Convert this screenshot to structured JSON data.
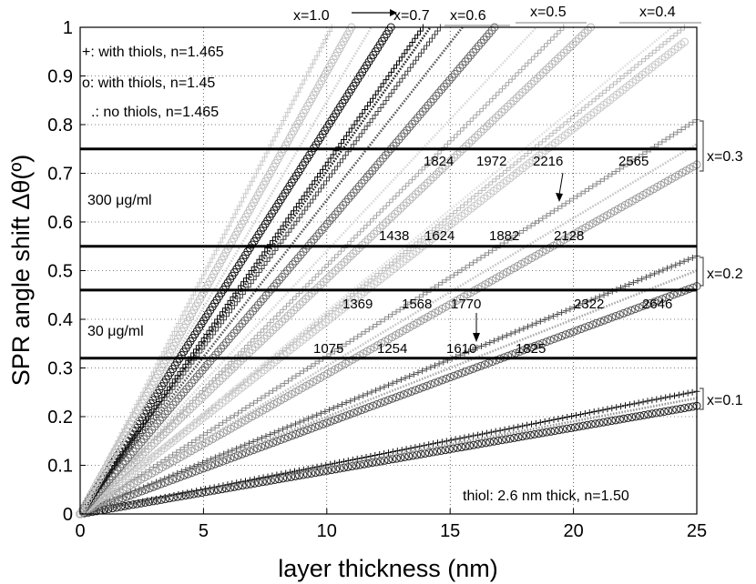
{
  "chart_data": {
    "type": "line",
    "title": "",
    "xlabel": "layer thickness (nm)",
    "ylabel": "SPR angle shift Δθ(º)",
    "xlim": [
      0,
      25
    ],
    "ylim": [
      0,
      1
    ],
    "x_ticks": [
      "0",
      "5",
      "10",
      "15",
      "20",
      "25"
    ],
    "y_ticks": [
      "0",
      "0.1",
      "0.2",
      "0.3",
      "0.4",
      "0.5",
      "0.6",
      "0.7",
      "0.8",
      "0.9",
      "1"
    ],
    "grid": true,
    "legend": {
      "position": "top-left",
      "entries": [
        {
          "marker": "+",
          "label": "+: with thiols, n=1.465"
        },
        {
          "marker": "o",
          "label": "o: with thiols, n=1.45"
        },
        {
          "marker": ".",
          "label": ".: no thiols, n=1.465"
        }
      ]
    },
    "note": "thiol: 2.6 nm thick, n=1.50",
    "horizontal_lines": [
      0.75,
      0.55,
      0.46,
      0.32
    ],
    "concentration_labels": [
      "300 μg/ml",
      "30 μg/ml"
    ],
    "composition_labels": [
      "x=1.0",
      "x=0.7",
      "x=0.6",
      "x=0.5",
      "x=0.4",
      "x=0.3",
      "x=0.2",
      "x=0.1"
    ],
    "intersection_labels": {
      "y_0_75": [
        "1824",
        "1972",
        "2216",
        "2565"
      ],
      "y_0_55": [
        "1438",
        "1624",
        "1882",
        "2128"
      ],
      "y_0_46": [
        "1369",
        "1568",
        "1770",
        "2322",
        "2646"
      ],
      "y_0_32": [
        "1075",
        "1254",
        "1610",
        "1825"
      ]
    },
    "series": [
      {
        "composition": "x=0.1",
        "marker": "+",
        "color": "#111111",
        "x": [
          0,
          25
        ],
        "y": [
          0,
          0.252
        ]
      },
      {
        "composition": "x=0.1",
        "marker": "o",
        "color": "#222222",
        "x": [
          0,
          25
        ],
        "y": [
          0,
          0.222
        ]
      },
      {
        "composition": "x=0.1",
        "marker": ".",
        "color": "#999999",
        "x": [
          0,
          25
        ],
        "y": [
          0,
          0.238
        ]
      },
      {
        "composition": "x=0.2",
        "marker": "+",
        "color": "#444444",
        "x": [
          0,
          25
        ],
        "y": [
          0,
          0.53
        ]
      },
      {
        "composition": "x=0.2",
        "marker": "o",
        "color": "#555555",
        "x": [
          0,
          25
        ],
        "y": [
          0,
          0.468
        ]
      },
      {
        "composition": "x=0.2",
        "marker": ".",
        "color": "#aaaaaa",
        "x": [
          0,
          25
        ],
        "y": [
          0,
          0.5
        ]
      },
      {
        "composition": "x=0.3",
        "marker": "+",
        "color": "#888888",
        "x": [
          0,
          25
        ],
        "y": [
          0,
          0.81
        ]
      },
      {
        "composition": "x=0.3",
        "marker": "o",
        "color": "#9a9a9a",
        "x": [
          0,
          25
        ],
        "y": [
          0,
          0.718
        ]
      },
      {
        "composition": "x=0.3",
        "marker": ".",
        "color": "#c4c4c4",
        "x": [
          0,
          25
        ],
        "y": [
          0,
          0.76
        ]
      },
      {
        "composition": "x=0.4",
        "marker": "+",
        "color": "#bbbbbb",
        "x": [
          0,
          24.5
        ],
        "y": [
          0,
          1.0
        ]
      },
      {
        "composition": "x=0.4",
        "marker": "o",
        "color": "#c8c8c8",
        "x": [
          0,
          24.5
        ],
        "y": [
          0,
          0.97
        ]
      },
      {
        "composition": "x=0.4",
        "marker": ".",
        "color": "#dedede",
        "x": [
          0,
          24
        ],
        "y": [
          0,
          1.0
        ]
      },
      {
        "composition": "x=0.5",
        "marker": "+",
        "color": "#a8a8a8",
        "x": [
          0,
          19.6
        ],
        "y": [
          0,
          1.0
        ]
      },
      {
        "composition": "x=0.5",
        "marker": "o",
        "color": "#b5b5b5",
        "x": [
          0,
          20.7
        ],
        "y": [
          0,
          1.0
        ]
      },
      {
        "composition": "x=0.5",
        "marker": ".",
        "color": "#d8d8d8",
        "x": [
          0,
          18.5
        ],
        "y": [
          0,
          1.0
        ]
      },
      {
        "composition": "x=0.6",
        "marker": "+",
        "color": "#444444",
        "x": [
          0,
          14.6
        ],
        "y": [
          0,
          1.0
        ]
      },
      {
        "composition": "x=0.6",
        "marker": "o",
        "color": "#666666",
        "x": [
          0,
          16.8
        ],
        "y": [
          0,
          1.0
        ]
      },
      {
        "composition": "x=0.6",
        "marker": ".",
        "color": "#555555",
        "x": [
          0,
          15.5
        ],
        "y": [
          0,
          1.0
        ]
      },
      {
        "composition": "x=0.7",
        "marker": "+",
        "color": "#000000",
        "x": [
          0,
          13.9
        ],
        "y": [
          0,
          1.0
        ]
      },
      {
        "composition": "x=0.7",
        "marker": "o",
        "color": "#111111",
        "x": [
          0,
          12.6
        ],
        "y": [
          0,
          1.0
        ]
      },
      {
        "composition": "x=0.7",
        "marker": ".",
        "color": "#222222",
        "x": [
          0,
          14.2
        ],
        "y": [
          0,
          1.0
        ]
      },
      {
        "composition": "x=1.0",
        "marker": "+",
        "color": "#c8c8c8",
        "x": [
          0,
          10.2
        ],
        "y": [
          0,
          1.0
        ]
      },
      {
        "composition": "x=1.0",
        "marker": "o",
        "color": "#bfbfbf",
        "x": [
          0,
          11.0
        ],
        "y": [
          0,
          1.0
        ]
      },
      {
        "composition": "x=1.0",
        "marker": ".",
        "color": "#d0d0d0",
        "x": [
          0,
          11.8
        ],
        "y": [
          0,
          1.0
        ]
      }
    ]
  }
}
